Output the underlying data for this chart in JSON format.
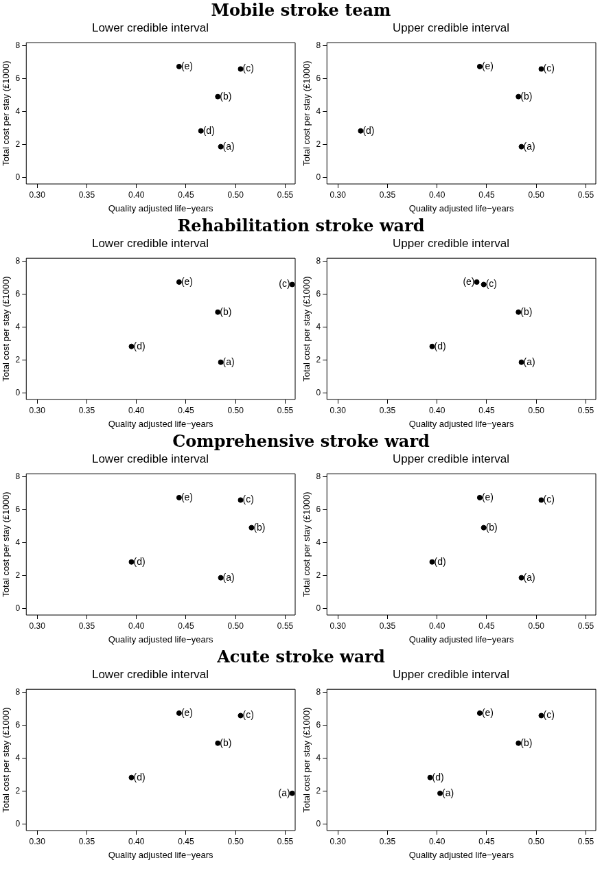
{
  "chart_data": [
    {
      "type": "scatter",
      "title": "Mobile stroke team",
      "subtitle": "Lower credible interval",
      "xlabel": "Quality adjusted life−years",
      "ylabel": "Total cost per stay (£1000)",
      "x": [
        0.485,
        0.482,
        0.505,
        0.465,
        0.443
      ],
      "series": [
        {
          "color": "#000000",
          "values": [
            1.87,
            4.92,
            6.6,
            2.83,
            6.75
          ]
        }
      ],
      "xlim": [
        0.289,
        0.56
      ],
      "ylim": [
        -0.4,
        8.2
      ],
      "xticks": [
        {
          "value": 0.3,
          "label": "0.30"
        },
        {
          "value": 0.35,
          "label": "0.35"
        },
        {
          "value": 0.4,
          "label": "0.40"
        },
        {
          "value": 0.45,
          "label": "0.45"
        },
        {
          "value": 0.5,
          "label": "0.50"
        },
        {
          "value": 0.55,
          "label": "0.55"
        }
      ],
      "yticks": [
        0,
        2,
        4,
        6,
        8
      ],
      "grid": false,
      "legend": false,
      "marker": "circle",
      "annotations": [
        {
          "text": "(a)",
          "x": 0.485,
          "y": 1.87
        },
        {
          "text": "(b)",
          "x": 0.482,
          "y": 4.92
        },
        {
          "text": "(c)",
          "x": 0.505,
          "y": 6.6
        },
        {
          "text": "(d)",
          "x": 0.465,
          "y": 2.83
        },
        {
          "text": "(e)",
          "x": 0.443,
          "y": 6.75
        }
      ]
    },
    {
      "type": "scatter",
      "subtitle": "Upper credible interval",
      "xlabel": "Quality adjusted life−years",
      "ylabel": "Total cost per stay (£1000)",
      "x": [
        0.485,
        0.482,
        0.505,
        0.323,
        0.443
      ],
      "series": [
        {
          "color": "#000000",
          "values": [
            1.87,
            4.92,
            6.6,
            2.83,
            6.75
          ]
        }
      ],
      "xlim": [
        0.289,
        0.56
      ],
      "ylim": [
        -0.4,
        8.2
      ],
      "xticks": [
        {
          "value": 0.3,
          "label": "0.30"
        },
        {
          "value": 0.35,
          "label": "0.35"
        },
        {
          "value": 0.4,
          "label": "0.40"
        },
        {
          "value": 0.45,
          "label": "0.45"
        },
        {
          "value": 0.5,
          "label": "0.50"
        },
        {
          "value": 0.55,
          "label": "0.55"
        }
      ],
      "yticks": [
        0,
        2,
        4,
        6,
        8
      ],
      "grid": false,
      "legend": false,
      "marker": "circle",
      "annotations": [
        {
          "text": "(a)",
          "x": 0.485,
          "y": 1.87
        },
        {
          "text": "(b)",
          "x": 0.482,
          "y": 4.92
        },
        {
          "text": "(c)",
          "x": 0.505,
          "y": 6.6
        },
        {
          "text": "(d)",
          "x": 0.323,
          "y": 2.83
        },
        {
          "text": "(e)",
          "x": 0.443,
          "y": 6.75
        }
      ]
    },
    {
      "type": "scatter",
      "title": "Rehabilitation stroke ward",
      "subtitle": "Lower credible interval",
      "xlabel": "Quality adjusted life−years",
      "ylabel": "Total cost per stay (£1000)",
      "x": [
        0.485,
        0.482,
        0.557,
        0.395,
        0.443
      ],
      "series": [
        {
          "color": "#000000",
          "values": [
            1.87,
            4.92,
            6.6,
            2.83,
            6.75
          ]
        }
      ],
      "xlim": [
        0.289,
        0.56
      ],
      "ylim": [
        -0.4,
        8.2
      ],
      "xticks": [
        {
          "value": 0.3,
          "label": "0.30"
        },
        {
          "value": 0.35,
          "label": "0.35"
        },
        {
          "value": 0.4,
          "label": "0.40"
        },
        {
          "value": 0.45,
          "label": "0.45"
        },
        {
          "value": 0.5,
          "label": "0.50"
        },
        {
          "value": 0.55,
          "label": "0.55"
        }
      ],
      "yticks": [
        0,
        2,
        4,
        6,
        8
      ],
      "grid": false,
      "legend": false,
      "marker": "circle",
      "annotations": [
        {
          "text": "(a)",
          "x": 0.485,
          "y": 1.87
        },
        {
          "text": "(b)",
          "x": 0.482,
          "y": 4.92
        },
        {
          "text": "(c)",
          "x": 0.557,
          "y": 6.6
        },
        {
          "text": "(d)",
          "x": 0.395,
          "y": 2.83
        },
        {
          "text": "(e)",
          "x": 0.443,
          "y": 6.75
        }
      ]
    },
    {
      "type": "scatter",
      "subtitle": "Upper credible interval",
      "xlabel": "Quality adjusted life−years",
      "ylabel": "Total cost per stay (£1000)",
      "x": [
        0.485,
        0.482,
        0.447,
        0.395,
        0.44
      ],
      "series": [
        {
          "color": "#000000",
          "values": [
            1.87,
            4.92,
            6.6,
            2.83,
            6.75
          ]
        }
      ],
      "xlim": [
        0.289,
        0.56
      ],
      "ylim": [
        -0.4,
        8.2
      ],
      "xticks": [
        {
          "value": 0.3,
          "label": "0.30"
        },
        {
          "value": 0.35,
          "label": "0.35"
        },
        {
          "value": 0.4,
          "label": "0.40"
        },
        {
          "value": 0.45,
          "label": "0.45"
        },
        {
          "value": 0.5,
          "label": "0.50"
        },
        {
          "value": 0.55,
          "label": "0.55"
        }
      ],
      "yticks": [
        0,
        2,
        4,
        6,
        8
      ],
      "grid": false,
      "legend": false,
      "marker": "circle",
      "annotations": [
        {
          "text": "(a)",
          "x": 0.485,
          "y": 1.87
        },
        {
          "text": "(b)",
          "x": 0.482,
          "y": 4.92
        },
        {
          "text": "(c)",
          "x": 0.447,
          "y": 6.6
        },
        {
          "text": "(d)",
          "x": 0.395,
          "y": 2.83
        },
        {
          "text": "(e)",
          "x": 0.44,
          "y": 6.75
        }
      ]
    },
    {
      "type": "scatter",
      "title": "Comprehensive stroke ward",
      "subtitle": "Lower credible interval",
      "xlabel": "Quality adjusted life−years",
      "ylabel": "Total cost per stay (£1000)",
      "x": [
        0.485,
        0.516,
        0.505,
        0.395,
        0.443
      ],
      "series": [
        {
          "color": "#000000",
          "values": [
            1.87,
            4.92,
            6.6,
            2.83,
            6.75
          ]
        }
      ],
      "xlim": [
        0.289,
        0.56
      ],
      "ylim": [
        -0.4,
        8.2
      ],
      "xticks": [
        {
          "value": 0.3,
          "label": "0.30"
        },
        {
          "value": 0.35,
          "label": "0.35"
        },
        {
          "value": 0.4,
          "label": "0.40"
        },
        {
          "value": 0.45,
          "label": "0.45"
        },
        {
          "value": 0.5,
          "label": "0.50"
        },
        {
          "value": 0.55,
          "label": "0.55"
        }
      ],
      "yticks": [
        0,
        2,
        4,
        6,
        8
      ],
      "grid": false,
      "legend": false,
      "marker": "circle",
      "annotations": [
        {
          "text": "(a)",
          "x": 0.485,
          "y": 1.87
        },
        {
          "text": "(b)",
          "x": 0.516,
          "y": 4.92
        },
        {
          "text": "(c)",
          "x": 0.505,
          "y": 6.6
        },
        {
          "text": "(d)",
          "x": 0.395,
          "y": 2.83
        },
        {
          "text": "(e)",
          "x": 0.443,
          "y": 6.75
        }
      ]
    },
    {
      "type": "scatter",
      "subtitle": "Upper credible interval",
      "xlabel": "Quality adjusted life−years",
      "ylabel": "Total cost per stay (£1000)",
      "x": [
        0.485,
        0.447,
        0.505,
        0.395,
        0.443
      ],
      "series": [
        {
          "color": "#000000",
          "values": [
            1.87,
            4.92,
            6.6,
            2.83,
            6.75
          ]
        }
      ],
      "xlim": [
        0.289,
        0.56
      ],
      "ylim": [
        -0.4,
        8.2
      ],
      "xticks": [
        {
          "value": 0.3,
          "label": "0.30"
        },
        {
          "value": 0.35,
          "label": "0.35"
        },
        {
          "value": 0.4,
          "label": "0.40"
        },
        {
          "value": 0.45,
          "label": "0.45"
        },
        {
          "value": 0.5,
          "label": "0.50"
        },
        {
          "value": 0.55,
          "label": "0.55"
        }
      ],
      "yticks": [
        0,
        2,
        4,
        6,
        8
      ],
      "grid": false,
      "legend": false,
      "marker": "circle",
      "annotations": [
        {
          "text": "(a)",
          "x": 0.485,
          "y": 1.87
        },
        {
          "text": "(b)",
          "x": 0.447,
          "y": 4.92
        },
        {
          "text": "(c)",
          "x": 0.505,
          "y": 6.6
        },
        {
          "text": "(d)",
          "x": 0.395,
          "y": 2.83
        },
        {
          "text": "(e)",
          "x": 0.443,
          "y": 6.75
        }
      ]
    },
    {
      "type": "scatter",
      "title": "Acute stroke ward",
      "subtitle": "Lower credible interval",
      "xlabel": "Quality adjusted life−years",
      "ylabel": "Total cost per stay (£1000)",
      "x": [
        0.557,
        0.482,
        0.505,
        0.395,
        0.443
      ],
      "series": [
        {
          "color": "#000000",
          "values": [
            1.87,
            4.92,
            6.6,
            2.83,
            6.75
          ]
        }
      ],
      "xlim": [
        0.289,
        0.56
      ],
      "ylim": [
        -0.4,
        8.2
      ],
      "xticks": [
        {
          "value": 0.3,
          "label": "0.30"
        },
        {
          "value": 0.35,
          "label": "0.35"
        },
        {
          "value": 0.4,
          "label": "0.40"
        },
        {
          "value": 0.45,
          "label": "0.45"
        },
        {
          "value": 0.5,
          "label": "0.50"
        },
        {
          "value": 0.55,
          "label": "0.55"
        }
      ],
      "yticks": [
        0,
        2,
        4,
        6,
        8
      ],
      "grid": false,
      "legend": false,
      "marker": "circle",
      "annotations": [
        {
          "text": "(a)",
          "x": 0.557,
          "y": 1.87
        },
        {
          "text": "(b)",
          "x": 0.482,
          "y": 4.92
        },
        {
          "text": "(c)",
          "x": 0.505,
          "y": 6.6
        },
        {
          "text": "(d)",
          "x": 0.395,
          "y": 2.83
        },
        {
          "text": "(e)",
          "x": 0.443,
          "y": 6.75
        }
      ]
    },
    {
      "type": "scatter",
      "subtitle": "Upper credible interval",
      "xlabel": "Quality adjusted life−years",
      "ylabel": "Total cost per stay (£1000)",
      "x": [
        0.403,
        0.482,
        0.505,
        0.393,
        0.443
      ],
      "series": [
        {
          "color": "#000000",
          "values": [
            1.87,
            4.92,
            6.6,
            2.83,
            6.75
          ]
        }
      ],
      "xlim": [
        0.289,
        0.56
      ],
      "ylim": [
        -0.4,
        8.2
      ],
      "xticks": [
        {
          "value": 0.3,
          "label": "0.30"
        },
        {
          "value": 0.35,
          "label": "0.35"
        },
        {
          "value": 0.4,
          "label": "0.40"
        },
        {
          "value": 0.45,
          "label": "0.45"
        },
        {
          "value": 0.5,
          "label": "0.50"
        },
        {
          "value": 0.55,
          "label": "0.55"
        }
      ],
      "yticks": [
        0,
        2,
        4,
        6,
        8
      ],
      "grid": false,
      "legend": false,
      "marker": "circle",
      "annotations": [
        {
          "text": "(a)",
          "x": 0.403,
          "y": 1.87
        },
        {
          "text": "(b)",
          "x": 0.482,
          "y": 4.92
        },
        {
          "text": "(c)",
          "x": 0.505,
          "y": 6.6
        },
        {
          "text": "(d)",
          "x": 0.393,
          "y": 2.83
        },
        {
          "text": "(e)",
          "x": 0.443,
          "y": 6.75
        }
      ]
    }
  ]
}
